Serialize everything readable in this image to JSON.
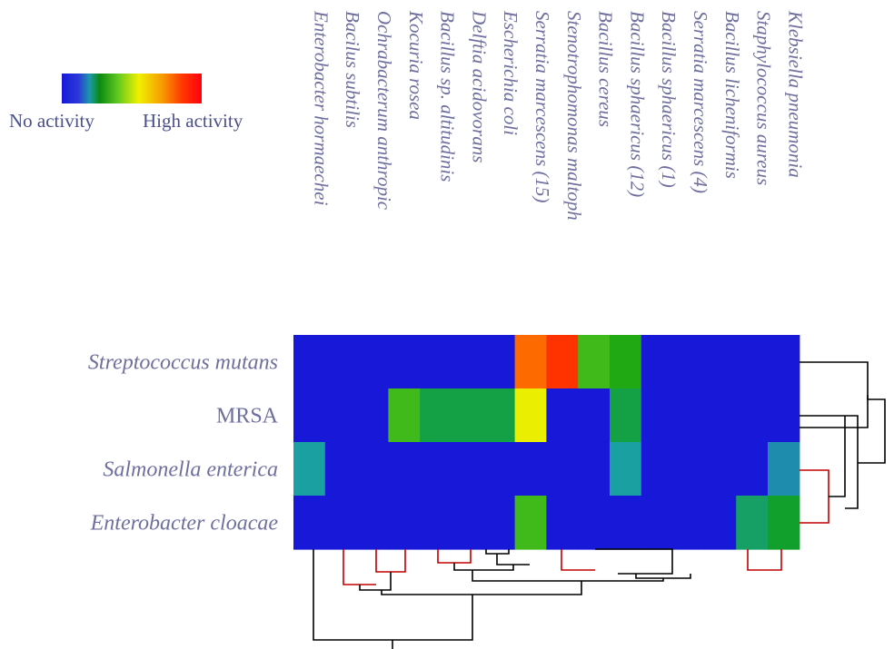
{
  "chart_data": {
    "type": "heatmap",
    "columns": [
      "Enterobacter hormaechei",
      "Bacilus subtilis",
      "Ochrabacterum anthropic",
      "Kocuria rosea",
      "Bacillus sp. altitudinis",
      "Delftia acidovorans",
      "Escherichia coli",
      "Serratia marcescens (15)",
      "Stenotrophomonas maltoph",
      "Bacillus cereus",
      "Bacillus sphaericus (12)",
      "Bacillus sphaericus (1)",
      "Serratia marcescens (4)",
      "Bacillus licheniformis",
      "Staphylococcus aureus",
      "Klebsiella pneumonia"
    ],
    "rows": [
      "Streptococcus mutans",
      "MRSA",
      "Salmonella enterica",
      "Enterobacter cloacae"
    ],
    "values": [
      [
        0,
        0,
        0,
        0,
        0,
        0,
        0,
        0.82,
        0.9,
        0.45,
        0.4,
        0,
        0,
        0,
        0,
        0
      ],
      [
        0,
        0,
        0,
        0.45,
        0.33,
        0.33,
        0.33,
        0.62,
        0,
        0,
        0.33,
        0,
        0,
        0,
        0,
        0
      ],
      [
        0.25,
        0,
        0,
        0,
        0,
        0,
        0,
        0,
        0,
        0,
        0.25,
        0,
        0,
        0,
        0,
        0.22
      ],
      [
        0,
        0,
        0,
        0,
        0,
        0,
        0,
        0.45,
        0,
        0,
        0,
        0,
        0,
        0,
        0.3,
        0.35
      ]
    ],
    "legend": {
      "low_label": "No activity",
      "high_label": "High activity",
      "colors": [
        "#1818d8",
        "#2a4bd8",
        "#1aa0a0",
        "#10a010",
        "#60cc20",
        "#f0f000",
        "#f8a000",
        "#ff4000",
        "#ff0000"
      ]
    }
  }
}
